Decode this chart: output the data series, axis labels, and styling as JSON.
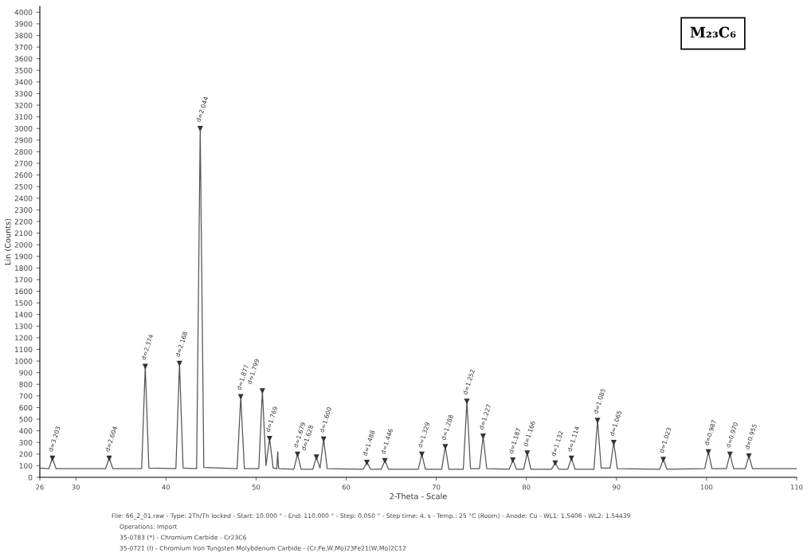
{
  "chart_data": {
    "type": "line",
    "xlabel": "2-Theta - Scale",
    "ylabel": "Lin (Counts)",
    "xlim": [
      26,
      110
    ],
    "xticks": [
      26,
      30,
      40,
      50,
      60,
      70,
      80,
      90,
      100,
      110
    ],
    "ylim": [
      0,
      4050
    ],
    "yticks": [
      0,
      100,
      200,
      300,
      400,
      500,
      600,
      700,
      800,
      900,
      1000,
      1100,
      1200,
      1300,
      1400,
      1500,
      1600,
      1700,
      1800,
      1900,
      2000,
      2100,
      2200,
      2300,
      2400,
      2500,
      2600,
      2700,
      2800,
      2900,
      3000,
      3100,
      3200,
      3300,
      3400,
      3500,
      3600,
      3700,
      3800,
      3900,
      4000
    ],
    "grid": false,
    "legend": false,
    "marker": "none",
    "line_style": "solid",
    "series": [
      {
        "color": "#555555",
        "x": [
          26,
          27.0,
          27.4,
          27.8,
          33.3,
          33.7,
          34.1,
          37.3,
          37.7,
          38.1,
          41.1,
          41.5,
          41.9,
          43.4,
          43.8,
          44.2,
          47.9,
          48.3,
          48.7,
          50.3,
          50.7,
          51.1,
          51.5,
          51.9,
          52.3,
          52.4,
          52.5,
          54.2,
          54.6,
          55.0,
          56.3,
          56.7,
          57.1,
          57.5,
          57.9,
          61.9,
          62.3,
          62.7,
          63.9,
          64.3,
          64.7,
          68.0,
          68.4,
          68.8,
          70.6,
          71.0,
          71.4,
          73.0,
          73.4,
          73.8,
          74.8,
          75.2,
          75.6,
          78.1,
          78.5,
          78.9,
          79.7,
          80.1,
          80.5,
          82.8,
          83.2,
          83.6,
          84.6,
          85.0,
          85.4,
          87.5,
          87.9,
          88.3,
          89.3,
          89.7,
          90.1,
          94.8,
          95.2,
          95.6,
          99.8,
          100.2,
          100.6,
          102.2,
          102.6,
          103.0,
          104.3,
          104.7,
          105.1,
          110
        ],
        "values": [
          80,
          75,
          165,
          75,
          75,
          165,
          75,
          75,
          955,
          80,
          75,
          980,
          80,
          75,
          3000,
          85,
          75,
          695,
          75,
          75,
          745,
          100,
          335,
          80,
          75,
          220,
          75,
          70,
          200,
          70,
          70,
          175,
          80,
          330,
          75,
          70,
          130,
          70,
          70,
          145,
          70,
          70,
          200,
          70,
          70,
          265,
          70,
          70,
          655,
          75,
          75,
          355,
          75,
          70,
          150,
          70,
          70,
          210,
          70,
          70,
          125,
          70,
          70,
          165,
          70,
          70,
          490,
          80,
          80,
          300,
          75,
          70,
          155,
          70,
          75,
          220,
          75,
          75,
          200,
          75,
          75,
          185,
          75,
          75
        ]
      }
    ],
    "annotations": [
      {
        "text": "d=3.203",
        "x": 27.4,
        "y": 165
      },
      {
        "text": "d=2.604",
        "x": 33.7,
        "y": 165
      },
      {
        "text": "d=2.374",
        "x": 37.7,
        "y": 955
      },
      {
        "text": "d=2.168",
        "x": 41.5,
        "y": 980
      },
      {
        "text": "d=2.044",
        "x": 43.8,
        "y": 3000
      },
      {
        "text": "d=1.877",
        "x": 48.3,
        "y": 695
      },
      {
        "text": "d=1.799",
        "x": 50.7,
        "y": 745
      },
      {
        "text": "d=1.769",
        "x": 51.5,
        "y": 335
      },
      {
        "text": "d=1.679",
        "x": 54.6,
        "y": 200
      },
      {
        "text": "d=1.628",
        "x": 56.7,
        "y": 175
      },
      {
        "text": "d=1.600",
        "x": 57.5,
        "y": 330
      },
      {
        "text": "d=1.488",
        "x": 62.3,
        "y": 130
      },
      {
        "text": "d=1.446",
        "x": 64.3,
        "y": 145
      },
      {
        "text": "d=1.329",
        "x": 68.4,
        "y": 200
      },
      {
        "text": "d=1.288",
        "x": 71.0,
        "y": 265
      },
      {
        "text": "d=1.252",
        "x": 73.4,
        "y": 655
      },
      {
        "text": "d=1.227",
        "x": 75.2,
        "y": 355
      },
      {
        "text": "d=1.187",
        "x": 78.5,
        "y": 150
      },
      {
        "text": "d=1.166",
        "x": 80.1,
        "y": 210
      },
      {
        "text": "d=1.132",
        "x": 83.2,
        "y": 125
      },
      {
        "text": "d=1.114",
        "x": 85.0,
        "y": 165
      },
      {
        "text": "d=1.085",
        "x": 87.9,
        "y": 490
      },
      {
        "text": "d=1.065",
        "x": 89.7,
        "y": 300
      },
      {
        "text": "d=1.023",
        "x": 95.2,
        "y": 155
      },
      {
        "text": "d=0.987",
        "x": 100.2,
        "y": 220
      },
      {
        "text": "d=0.970",
        "x": 102.6,
        "y": 200
      },
      {
        "text": "d=0.955",
        "x": 104.7,
        "y": 185
      },
      "M₂₃C₆",
      "File: 66_2_01.raw - Type: 2Th/Th locked - Start: 10.000 ° - End: 110.000 ° - Step: 0.050 ° - Step time: 4. s - Temp.: 25 °C (Room) - Anode: Cu - WL1: 1.5406 - WL2: 1.54439",
      "Operations: Import",
      "35-0783 (*) - Chromium Carbide - Cr23C6",
      "35-0721 (I) - Chromium Iron Tungsten Molybdenum Carbide - (Cr,Fe,W,Mo)23Fe21(W,Mo)2C12"
    ]
  }
}
